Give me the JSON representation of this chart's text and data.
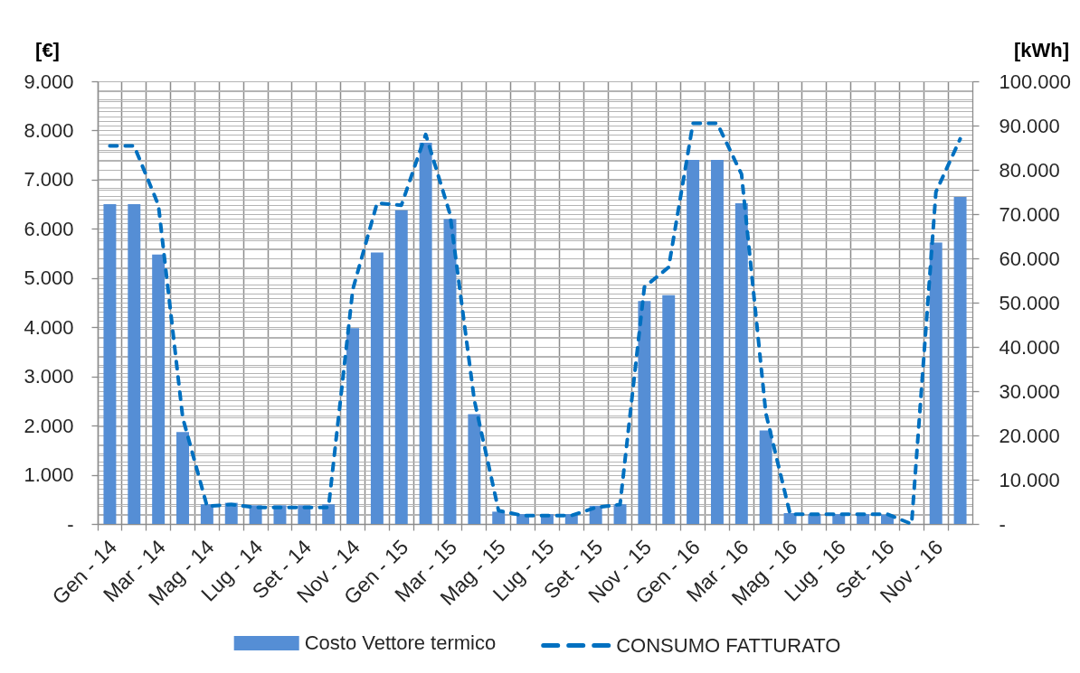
{
  "chart_data": {
    "type": "bar",
    "categories": [
      "Gen - 14",
      null,
      "Mar - 14",
      null,
      "Mag - 14",
      null,
      "Lug - 14",
      null,
      "Set - 14",
      null,
      "Nov - 14",
      null,
      "Gen - 15",
      null,
      "Mar - 15",
      null,
      "Mag - 15",
      null,
      "Lug - 15",
      null,
      "Set - 15",
      null,
      "Nov - 15",
      null,
      "Gen - 16",
      null,
      "Mar - 16",
      null,
      "Mag - 16",
      null,
      "Lug - 16",
      null,
      "Set - 16",
      null,
      "Nov - 16",
      null
    ],
    "series": [
      {
        "name": "Costo Vettore termico",
        "color": "#558ed5",
        "values": [
          6500,
          6500,
          5480,
          1870,
          400,
          430,
          380,
          380,
          380,
          400,
          3980,
          5520,
          6380,
          7750,
          6200,
          2230,
          250,
          200,
          200,
          200,
          370,
          400,
          4530,
          4650,
          7400,
          7400,
          6520,
          1900,
          220,
          200,
          200,
          200,
          190,
          0,
          5720,
          6650
        ]
      },
      {
        "name": "CONSUMO FATTURATO",
        "type": "line",
        "axis": "y2",
        "color": "#0070c0",
        "line_style": "dashed",
        "values": [
          85400,
          85400,
          72000,
          24000,
          4000,
          4400,
          3700,
          3700,
          3700,
          3700,
          53000,
          72500,
          72000,
          88000,
          70000,
          28000,
          3000,
          1900,
          1900,
          1900,
          3700,
          4400,
          53500,
          58000,
          90500,
          90500,
          79000,
          25000,
          2200,
          2200,
          2200,
          2200,
          2200,
          0,
          75000,
          87000
        ]
      }
    ],
    "ylabel": "[€]",
    "y2label": "[kWh]",
    "ylim": [
      0,
      9000
    ],
    "yticks": [
      {
        "value": 0,
        "label": "-"
      },
      {
        "value": 1000,
        "label": "1.000"
      },
      {
        "value": 2000,
        "label": "2.000"
      },
      {
        "value": 3000,
        "label": "3.000"
      },
      {
        "value": 4000,
        "label": "4.000"
      },
      {
        "value": 5000,
        "label": "5.000"
      },
      {
        "value": 6000,
        "label": "6.000"
      },
      {
        "value": 7000,
        "label": "7.000"
      },
      {
        "value": 8000,
        "label": "8.000"
      },
      {
        "value": 9000,
        "label": "9.000"
      }
    ],
    "y2lim": [
      0,
      100000
    ],
    "y2ticks": [
      {
        "value": 0,
        "label": "-"
      },
      {
        "value": 10000,
        "label": "10.000"
      },
      {
        "value": 20000,
        "label": "20.000"
      },
      {
        "value": 30000,
        "label": "30.000"
      },
      {
        "value": 40000,
        "label": "40.000"
      },
      {
        "value": 50000,
        "label": "50.000"
      },
      {
        "value": 60000,
        "label": "60.000"
      },
      {
        "value": 70000,
        "label": "70.000"
      },
      {
        "value": 80000,
        "label": "80.000"
      },
      {
        "value": 90000,
        "label": "90.000"
      },
      {
        "value": 100000,
        "label": "100.000"
      }
    ],
    "grid": true,
    "legend": "bottom"
  }
}
